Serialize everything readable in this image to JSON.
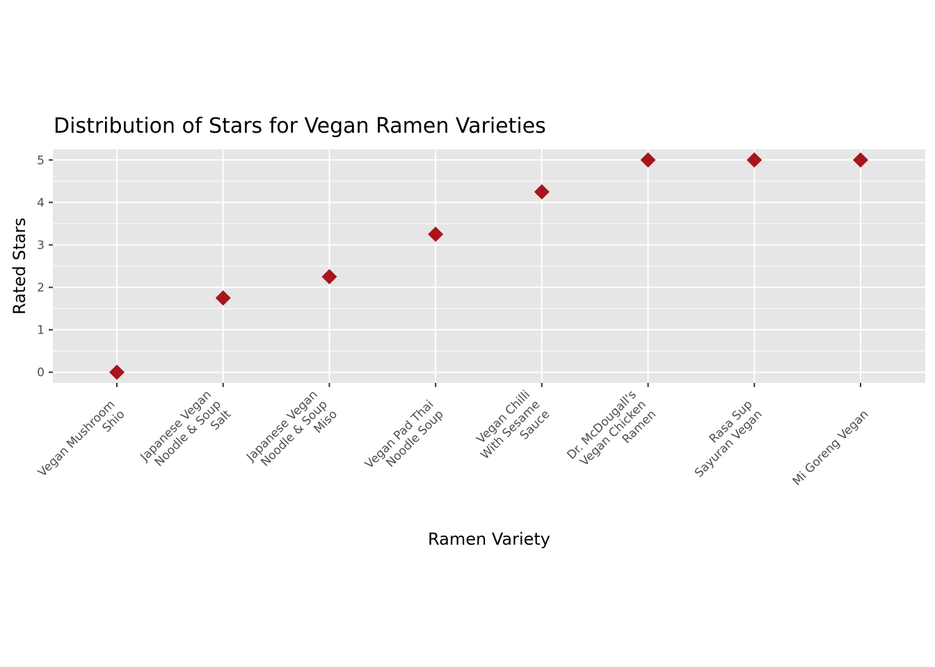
{
  "chart_data": {
    "type": "scatter",
    "title": "Distribution of Stars for Vegan Ramen Varieties",
    "xlabel": "Ramen Variety",
    "ylabel": "Rated Stars",
    "categories": [
      "Vegan Mushroom Shio",
      "Japanese Vegan Noodle & Soup Salt",
      "Japanese Vegan Noodle & Soup Miso",
      "Vegan Pad Thai Noodle Soup",
      "Vegan Chilli With Sesame Sauce",
      "Dr. McDougall's Vegan Chicken Ramen",
      "Rasa Sup Sayuran Vegan",
      "Mi Goreng Vegan"
    ],
    "category_label_lines": [
      [
        "Vegan Mushroom",
        "Shio"
      ],
      [
        "Japanese Vegan",
        "Noodle & Soup",
        "Salt"
      ],
      [
        "Japanese Vegan",
        "Noodle & Soup",
        "Miso"
      ],
      [
        "Vegan Pad Thai",
        "Noodle Soup"
      ],
      [
        "Vegan Chilli",
        "With Sesame",
        "Sauce"
      ],
      [
        "Dr. McDougall's",
        "Vegan Chicken",
        "Ramen"
      ],
      [
        "Rasa Sup",
        "Sayuran Vegan"
      ],
      [
        "Mi Goreng Vegan"
      ]
    ],
    "values": [
      0,
      1.75,
      2.25,
      3.25,
      4.25,
      5,
      5,
      5
    ],
    "ylim": [
      -0.25,
      5.25
    ],
    "yticks": [
      0,
      1,
      2,
      3,
      4,
      5
    ],
    "grid": true,
    "marker": "diamond",
    "colors": {
      "point": "#a8141c",
      "panel": "#e6e6e6",
      "grid": "#ffffff"
    }
  }
}
